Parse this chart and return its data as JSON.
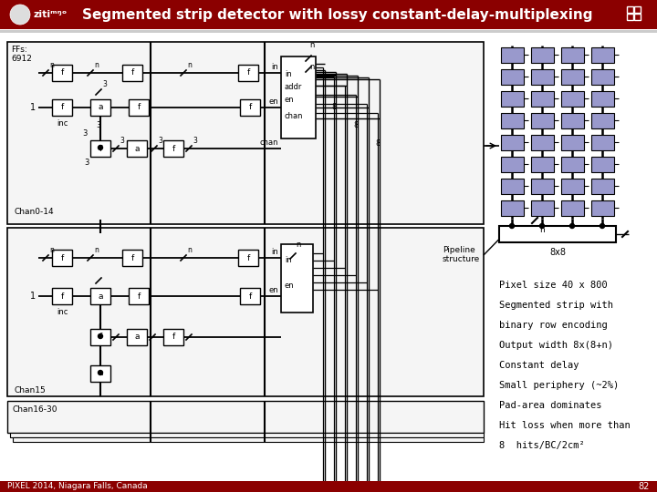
{
  "title": "Segmented strip detector with lossy constant-delay-multiplexing",
  "bg_color": "#ffffff",
  "header_bg": "#8B0000",
  "header_text_color": "#ffffff",
  "block_color": "#9999cc",
  "block_border": "#000000",
  "footer_text": "PIXEL 2014, Niagara Falls, Canada",
  "slide_number": "82",
  "annotations": [
    "Pixel size 40 x 800",
    "Segmented strip with",
    "binary row encoding",
    "Output width 8x(8+n)",
    "Constant delay",
    "Small periphery (~2%)",
    "Pad-area dominates",
    "Hit loss when more than",
    "8  hits/BC/2cm²"
  ],
  "pipeline_label": "Pipeline\nstructure",
  "size_label": "8x8",
  "n_label": "n",
  "ffs_label": "FFs:\n6912",
  "chan0_14_label": "Chan0-14",
  "chan15_label": "Chan15",
  "chan16_30_label": "Chan16-30"
}
